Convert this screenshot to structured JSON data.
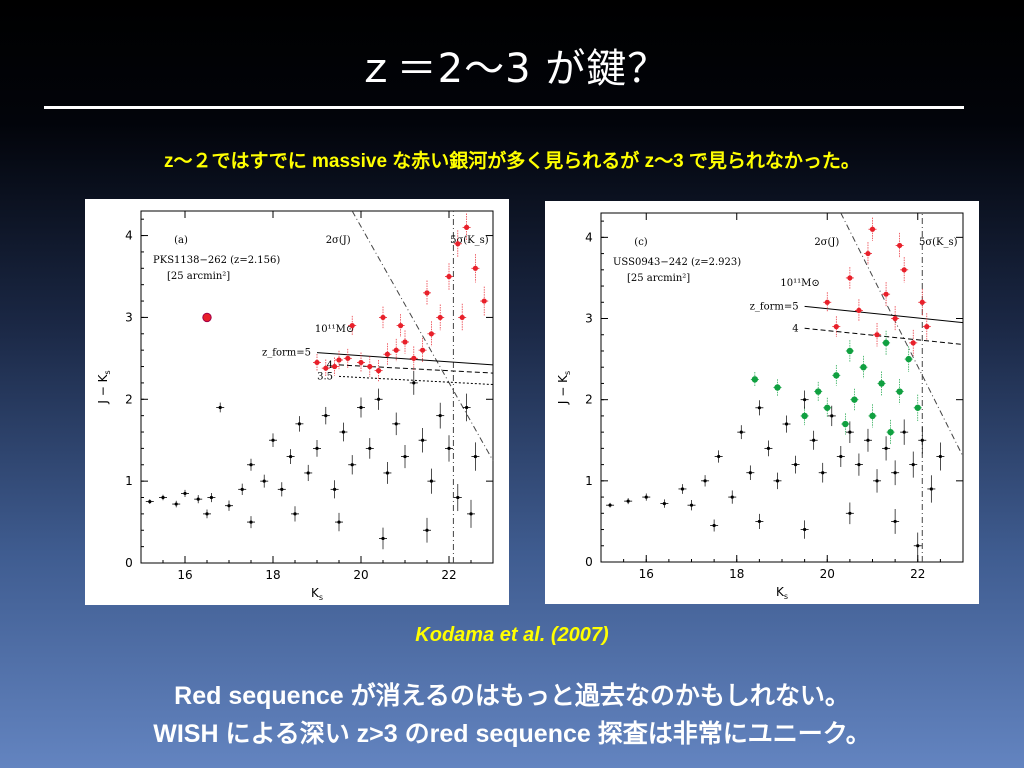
{
  "slide": {
    "title": "ｚ＝2～3 が鍵？",
    "subtitle": "z～２ではすでに massive な赤い銀河が多く見られるが z～3 で見られなかった。",
    "citation": "Kodama et al. (2007)",
    "line1": "Red sequence が消えるのはもっと過去なのかもしれない。",
    "line2": "WISH による深い z>3 のred sequence 探査は非常にユニーク。"
  },
  "colors": {
    "background_top": "#000000",
    "background_bottom": "#6384c0",
    "title": "#ffffff",
    "subtitle": "#ffff00",
    "red_points": "#e8202a",
    "green_points": "#10a040",
    "black_points": "#000000"
  },
  "chart_data": [
    {
      "type": "scatter",
      "panel_label": "(a)",
      "field": "PKS1138−262 (z=2.156)",
      "area": "[25 arcmin²]",
      "xlabel": "K_s",
      "ylabel": "J − K_s",
      "xlim": [
        15,
        23
      ],
      "ylim": [
        0,
        4.3
      ],
      "xticks": [
        "16",
        "18",
        "20",
        "22"
      ],
      "yticks": [
        "0",
        "1",
        "2",
        "3",
        "4"
      ],
      "annotations": [
        "2σ(J)",
        "5σ(K_s)",
        "10¹¹M⊙",
        "z_form=5",
        "4",
        "3.5"
      ],
      "model_lines": [
        {
          "name": "z_form=5",
          "x": [
            19,
            23
          ],
          "y": [
            2.57,
            2.42
          ]
        },
        {
          "name": "4",
          "x": [
            19.5,
            23
          ],
          "y": [
            2.42,
            2.32
          ]
        },
        {
          "name": "3.5",
          "x": [
            19.5,
            23
          ],
          "y": [
            2.28,
            2.18
          ]
        }
      ],
      "limit_lines": [
        {
          "name": "2σ(J)",
          "x": [
            19.8,
            23
          ],
          "y": [
            4.3,
            1.25
          ]
        },
        {
          "name": "5σ(K_s)",
          "x": [
            22.1,
            22.1
          ],
          "y": [
            0,
            4.3
          ]
        }
      ],
      "series": [
        {
          "name": "",
          "color": "red",
          "marker": "star",
          "points": [
            [
              16.5,
              3.0
            ]
          ]
        },
        {
          "name": "",
          "color": "red",
          "marker": "filled",
          "points": [
            [
              19.0,
              2.45
            ],
            [
              19.2,
              2.38
            ],
            [
              19.4,
              2.4
            ],
            [
              19.5,
              2.48
            ],
            [
              19.7,
              2.5
            ],
            [
              20.0,
              2.45
            ],
            [
              20.2,
              2.4
            ],
            [
              20.4,
              2.35
            ],
            [
              20.6,
              2.55
            ],
            [
              20.8,
              2.6
            ],
            [
              21.0,
              2.7
            ],
            [
              21.2,
              2.5
            ],
            [
              21.4,
              2.6
            ],
            [
              21.6,
              2.8
            ],
            [
              21.8,
              3.0
            ],
            [
              22.0,
              3.5
            ],
            [
              22.2,
              3.9
            ],
            [
              22.4,
              4.1
            ],
            [
              22.6,
              3.6
            ],
            [
              22.8,
              3.2
            ],
            [
              20.5,
              3.0
            ],
            [
              20.9,
              2.9
            ],
            [
              21.5,
              3.3
            ],
            [
              22.3,
              3.0
            ],
            [
              19.8,
              2.9
            ]
          ]
        },
        {
          "name": "",
          "color": "black",
          "marker": "dot",
          "points": [
            [
              15.2,
              0.75
            ],
            [
              15.5,
              0.8
            ],
            [
              15.8,
              0.72
            ],
            [
              16.0,
              0.85
            ],
            [
              16.3,
              0.78
            ],
            [
              16.6,
              0.8
            ],
            [
              16.8,
              1.9
            ],
            [
              17.0,
              0.7
            ],
            [
              17.3,
              0.9
            ],
            [
              17.5,
              1.2
            ],
            [
              17.8,
              1.0
            ],
            [
              18.0,
              1.5
            ],
            [
              18.2,
              0.9
            ],
            [
              18.4,
              1.3
            ],
            [
              18.6,
              1.7
            ],
            [
              18.8,
              1.1
            ],
            [
              19.0,
              1.4
            ],
            [
              19.2,
              1.8
            ],
            [
              19.4,
              0.9
            ],
            [
              19.6,
              1.6
            ],
            [
              19.8,
              1.2
            ],
            [
              20.0,
              1.9
            ],
            [
              20.2,
              1.4
            ],
            [
              20.4,
              2.0
            ],
            [
              20.6,
              1.1
            ],
            [
              20.8,
              1.7
            ],
            [
              21.0,
              1.3
            ],
            [
              21.2,
              2.2
            ],
            [
              21.4,
              1.5
            ],
            [
              21.6,
              1.0
            ],
            [
              21.8,
              1.8
            ],
            [
              22.0,
              1.4
            ],
            [
              22.2,
              0.8
            ],
            [
              22.4,
              1.9
            ],
            [
              22.6,
              1.3
            ],
            [
              19.5,
              0.5
            ],
            [
              20.5,
              0.3
            ],
            [
              21.5,
              0.4
            ],
            [
              22.5,
              0.6
            ],
            [
              18.5,
              0.6
            ],
            [
              17.5,
              0.5
            ],
            [
              16.5,
              0.6
            ]
          ]
        }
      ]
    },
    {
      "type": "scatter",
      "panel_label": "(c)",
      "field": "USS0943−242 (z=2.923)",
      "area": "[25 arcmin²]",
      "xlabel": "K_s",
      "ylabel": "J − K_s",
      "xlim": [
        15,
        23
      ],
      "ylim": [
        0,
        4.3
      ],
      "xticks": [
        "16",
        "18",
        "20",
        "22"
      ],
      "yticks": [
        "0",
        "1",
        "2",
        "3",
        "4"
      ],
      "annotations": [
        "2σ(J)",
        "5σ(K_s)",
        "10¹¹M⊙",
        "z_form=5",
        "4"
      ],
      "model_lines": [
        {
          "name": "z_form=5",
          "x": [
            19.5,
            23
          ],
          "y": [
            3.15,
            2.95
          ]
        },
        {
          "name": "4",
          "x": [
            19.5,
            23
          ],
          "y": [
            2.88,
            2.68
          ]
        }
      ],
      "limit_lines": [
        {
          "name": "2σ(J)",
          "x": [
            20.3,
            23
          ],
          "y": [
            4.3,
            1.3
          ]
        },
        {
          "name": "5σ(K_s)",
          "x": [
            22.1,
            22.1
          ],
          "y": [
            0,
            4.3
          ]
        }
      ],
      "series": [
        {
          "name": "",
          "color": "green",
          "marker": "filled",
          "points": [
            [
              18.4,
              2.25
            ],
            [
              18.9,
              2.15
            ],
            [
              19.5,
              1.8
            ],
            [
              19.8,
              2.1
            ],
            [
              20.0,
              1.9
            ],
            [
              20.2,
              2.3
            ],
            [
              20.4,
              1.7
            ],
            [
              20.6,
              2.0
            ],
            [
              20.8,
              2.4
            ],
            [
              21.0,
              1.8
            ],
            [
              21.2,
              2.2
            ],
            [
              21.4,
              1.6
            ],
            [
              21.6,
              2.1
            ],
            [
              21.8,
              2.5
            ],
            [
              22.0,
              1.9
            ],
            [
              20.5,
              2.6
            ],
            [
              21.3,
              2.7
            ]
          ]
        },
        {
          "name": "",
          "color": "red",
          "marker": "filled",
          "points": [
            [
              20.0,
              3.2
            ],
            [
              20.2,
              2.9
            ],
            [
              20.5,
              3.5
            ],
            [
              20.7,
              3.1
            ],
            [
              20.9,
              3.8
            ],
            [
              21.1,
              2.8
            ],
            [
              21.3,
              3.3
            ],
            [
              21.5,
              3.0
            ],
            [
              21.7,
              3.6
            ],
            [
              21.9,
              2.7
            ],
            [
              22.1,
              3.2
            ],
            [
              21.0,
              4.1
            ],
            [
              21.6,
              3.9
            ],
            [
              22.2,
              2.9
            ]
          ]
        },
        {
          "name": "",
          "color": "black",
          "marker": "dot",
          "points": [
            [
              15.2,
              0.7
            ],
            [
              15.6,
              0.75
            ],
            [
              16.0,
              0.8
            ],
            [
              16.4,
              0.72
            ],
            [
              16.8,
              0.9
            ],
            [
              17.0,
              0.7
            ],
            [
              17.3,
              1.0
            ],
            [
              17.6,
              1.3
            ],
            [
              17.9,
              0.8
            ],
            [
              18.1,
              1.6
            ],
            [
              18.3,
              1.1
            ],
            [
              18.5,
              1.9
            ],
            [
              18.7,
              1.4
            ],
            [
              18.9,
              1.0
            ],
            [
              19.1,
              1.7
            ],
            [
              19.3,
              1.2
            ],
            [
              19.5,
              2.0
            ],
            [
              19.7,
              1.5
            ],
            [
              19.9,
              1.1
            ],
            [
              20.1,
              1.8
            ],
            [
              20.3,
              1.3
            ],
            [
              20.5,
              1.6
            ],
            [
              20.7,
              1.2
            ],
            [
              20.9,
              1.5
            ],
            [
              21.1,
              1.0
            ],
            [
              21.3,
              1.4
            ],
            [
              21.5,
              1.1
            ],
            [
              21.7,
              1.6
            ],
            [
              21.9,
              1.2
            ],
            [
              22.1,
              1.5
            ],
            [
              22.3,
              0.9
            ],
            [
              22.5,
              1.3
            ],
            [
              17.5,
              0.45
            ],
            [
              18.5,
              0.5
            ],
            [
              19.5,
              0.4
            ],
            [
              20.5,
              0.6
            ],
            [
              21.5,
              0.5
            ],
            [
              22.0,
              0.2
            ]
          ]
        }
      ]
    }
  ]
}
